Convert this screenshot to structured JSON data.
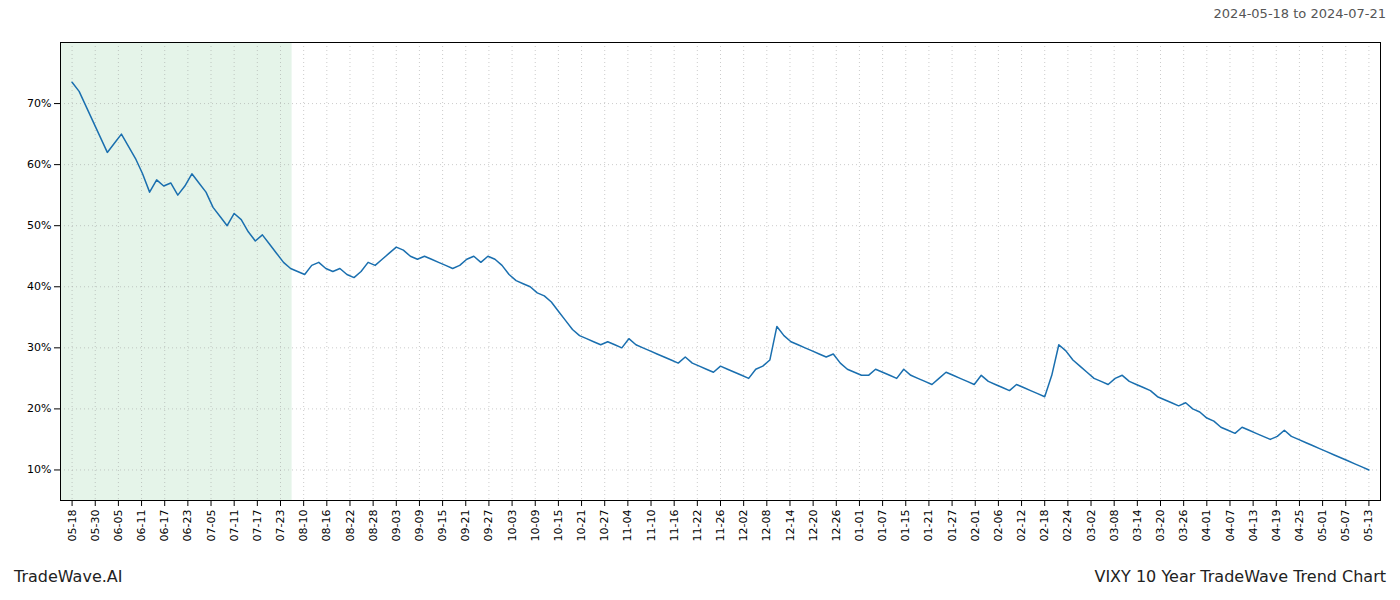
{
  "chart_data": {
    "type": "line",
    "color": "#1a6faf",
    "annotations": [
      "2024-05-18 to 2024-07-21",
      "TradeWave.AI",
      "VIXY 10 Year TradeWave Trend Chart"
    ],
    "grid": true,
    "span": {
      "from": "05-18",
      "to": "07-23",
      "color": "#d4edda"
    },
    "xlim": [
      -0.5,
      56.5
    ],
    "xticks": [
      {
        "value": 0,
        "label": "05-18"
      },
      {
        "value": 1,
        "label": "05-30"
      },
      {
        "value": 2,
        "label": "06-05"
      },
      {
        "value": 3,
        "label": "06-11"
      },
      {
        "value": 4,
        "label": "06-17"
      },
      {
        "value": 5,
        "label": "06-23"
      },
      {
        "value": 6,
        "label": "07-05"
      },
      {
        "value": 7,
        "label": "07-11"
      },
      {
        "value": 8,
        "label": "07-17"
      },
      {
        "value": 9,
        "label": "07-23"
      },
      {
        "value": 10,
        "label": "08-10"
      },
      {
        "value": 11,
        "label": "08-16"
      },
      {
        "value": 12,
        "label": "08-22"
      },
      {
        "value": 13,
        "label": "08-28"
      },
      {
        "value": 14,
        "label": "09-03"
      },
      {
        "value": 15,
        "label": "09-09"
      },
      {
        "value": 16,
        "label": "09-15"
      },
      {
        "value": 17,
        "label": "09-21"
      },
      {
        "value": 18,
        "label": "09-27"
      },
      {
        "value": 19,
        "label": "10-03"
      },
      {
        "value": 20,
        "label": "10-09"
      },
      {
        "value": 21,
        "label": "10-15"
      },
      {
        "value": 22,
        "label": "10-21"
      },
      {
        "value": 23,
        "label": "10-27"
      },
      {
        "value": 24,
        "label": "11-04"
      },
      {
        "value": 25,
        "label": "11-10"
      },
      {
        "value": 26,
        "label": "11-16"
      },
      {
        "value": 27,
        "label": "11-22"
      },
      {
        "value": 28,
        "label": "11-26"
      },
      {
        "value": 29,
        "label": "12-02"
      },
      {
        "value": 30,
        "label": "12-08"
      },
      {
        "value": 31,
        "label": "12-14"
      },
      {
        "value": 32,
        "label": "12-20"
      },
      {
        "value": 33,
        "label": "12-26"
      },
      {
        "value": 34,
        "label": "01-01"
      },
      {
        "value": 35,
        "label": "01-07"
      },
      {
        "value": 36,
        "label": "01-15"
      },
      {
        "value": 37,
        "label": "01-21"
      },
      {
        "value": 38,
        "label": "01-27"
      },
      {
        "value": 39,
        "label": "02-01"
      },
      {
        "value": 40,
        "label": "02-06"
      },
      {
        "value": 41,
        "label": "02-12"
      },
      {
        "value": 42,
        "label": "02-18"
      },
      {
        "value": 43,
        "label": "02-24"
      },
      {
        "value": 44,
        "label": "03-02"
      },
      {
        "value": 45,
        "label": "03-08"
      },
      {
        "value": 46,
        "label": "03-14"
      },
      {
        "value": 47,
        "label": "03-20"
      },
      {
        "value": 48,
        "label": "03-26"
      },
      {
        "value": 49,
        "label": "04-01"
      },
      {
        "value": 50,
        "label": "04-07"
      },
      {
        "value": 51,
        "label": "04-13"
      },
      {
        "value": 52,
        "label": "04-19"
      },
      {
        "value": 53,
        "label": "04-25"
      },
      {
        "value": 54,
        "label": "05-01"
      },
      {
        "value": 55,
        "label": "05-07"
      },
      {
        "value": 56,
        "label": "05-13"
      }
    ],
    "ylim": [
      5,
      80
    ],
    "yticks": [
      {
        "value": 10,
        "label": "10%"
      },
      {
        "value": 20,
        "label": "20%"
      },
      {
        "value": 30,
        "label": "30%"
      },
      {
        "value": 40,
        "label": "40%"
      },
      {
        "value": 50,
        "label": "50%"
      },
      {
        "value": 60,
        "label": "60%"
      },
      {
        "value": 70,
        "label": "70%"
      }
    ],
    "values": [
      73.5,
      72.0,
      69.5,
      67.0,
      64.5,
      62.0,
      63.5,
      65.0,
      63.0,
      61.0,
      58.5,
      55.5,
      57.5,
      56.5,
      57.0,
      55.0,
      56.5,
      58.5,
      57.0,
      55.5,
      53.0,
      51.5,
      50.0,
      52.0,
      51.0,
      49.0,
      47.5,
      48.5,
      47.0,
      45.5,
      44.0,
      43.0,
      42.5,
      42.0,
      43.5,
      44.0,
      43.0,
      42.5,
      43.0,
      42.0,
      41.5,
      42.5,
      44.0,
      43.5,
      44.5,
      45.5,
      46.5,
      46.0,
      45.0,
      44.5,
      45.0,
      44.5,
      44.0,
      43.5,
      43.0,
      43.5,
      44.5,
      45.0,
      44.0,
      45.0,
      44.5,
      43.5,
      42.0,
      41.0,
      40.5,
      40.0,
      39.0,
      38.5,
      37.5,
      36.0,
      34.5,
      33.0,
      32.0,
      31.5,
      31.0,
      30.5,
      31.0,
      30.5,
      30.0,
      31.5,
      30.5,
      30.0,
      29.5,
      29.0,
      28.5,
      28.0,
      27.5,
      28.5,
      27.5,
      27.0,
      26.5,
      26.0,
      27.0,
      26.5,
      26.0,
      25.5,
      25.0,
      26.5,
      27.0,
      28.0,
      33.5,
      32.0,
      31.0,
      30.5,
      30.0,
      29.5,
      29.0,
      28.5,
      29.0,
      27.5,
      26.5,
      26.0,
      25.5,
      25.5,
      26.5,
      26.0,
      25.5,
      25.0,
      26.5,
      25.5,
      25.0,
      24.5,
      24.0,
      25.0,
      26.0,
      25.5,
      25.0,
      24.5,
      24.0,
      25.5,
      24.5,
      24.0,
      23.5,
      23.0,
      24.0,
      23.5,
      23.0,
      22.5,
      22.0,
      25.5,
      30.5,
      29.5,
      28.0,
      27.0,
      26.0,
      25.0,
      24.5,
      24.0,
      25.0,
      25.5,
      24.5,
      24.0,
      23.5,
      23.0,
      22.0,
      21.5,
      21.0,
      20.5,
      21.0,
      20.0,
      19.5,
      18.5,
      18.0,
      17.0,
      16.5,
      16.0,
      17.0,
      16.5,
      16.0,
      15.5,
      15.0,
      15.5,
      16.5,
      15.5,
      15.0,
      14.5,
      14.0,
      13.5,
      13.0,
      12.5,
      12.0,
      11.5,
      11.0,
      10.5,
      10.0
    ]
  }
}
